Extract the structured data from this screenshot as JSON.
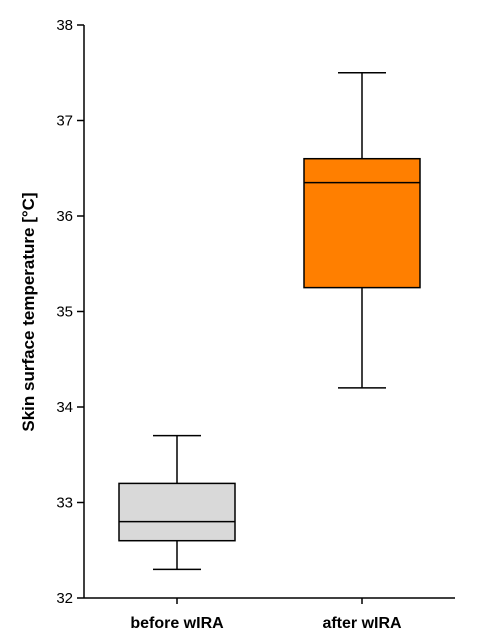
{
  "chart_data": {
    "type": "box",
    "title": "",
    "xlabel": "",
    "ylabel": "Skin surface temperature [°C]",
    "ylim": [
      32,
      38
    ],
    "yticks": [
      32,
      33,
      34,
      35,
      36,
      37,
      38
    ],
    "ytick_labels": [
      "32",
      "33",
      "34",
      "35",
      "36",
      "37",
      "38"
    ],
    "grid": false,
    "categories": [
      "before wIRA",
      "after wIRA"
    ],
    "boxes": [
      {
        "category": "before wIRA",
        "whisker_low": 32.3,
        "q1": 32.6,
        "median": 32.8,
        "q3": 33.2,
        "whisker_high": 33.7,
        "color": "#d9d9d9"
      },
      {
        "category": "after wIRA",
        "whisker_low": 34.2,
        "q1": 35.25,
        "median": 36.35,
        "q3": 36.6,
        "whisker_high": 37.5,
        "color": "#ff7f00"
      }
    ]
  }
}
